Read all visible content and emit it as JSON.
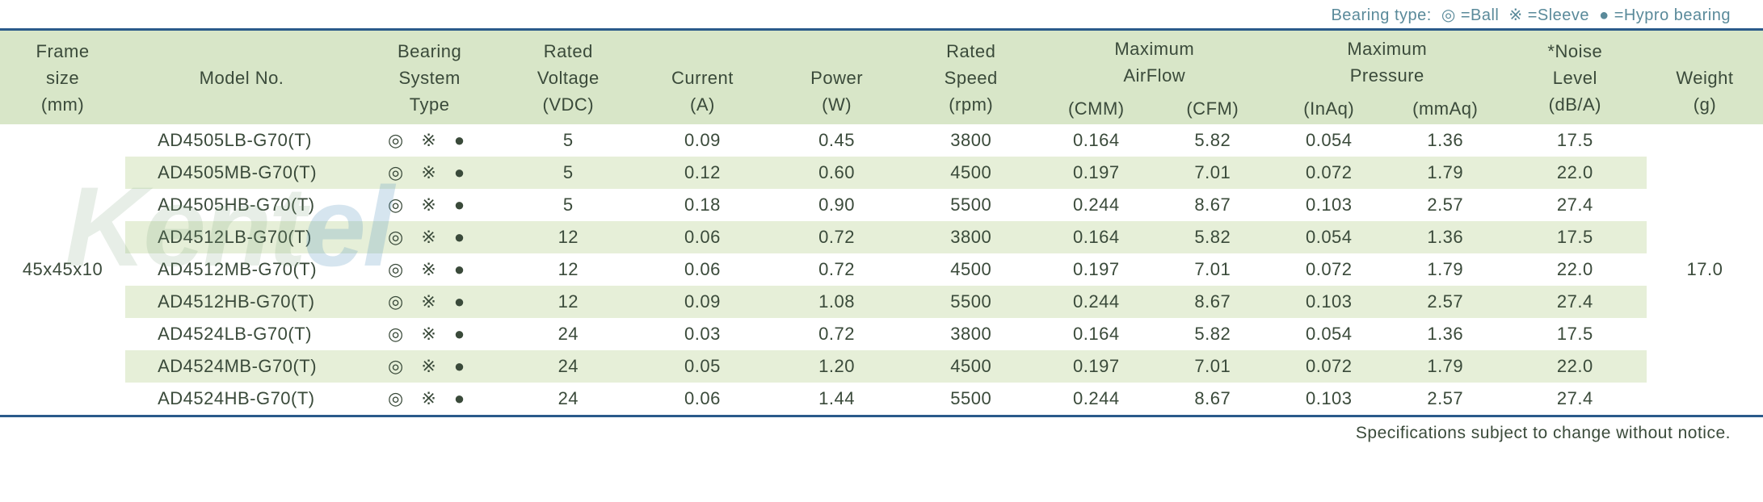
{
  "legend": {
    "label": "Bearing type:",
    "ball_sym": "◎",
    "ball_txt": "=Ball",
    "sleeve_sym": "※",
    "sleeve_txt": "=Sleeve",
    "hypro_sym": "●",
    "hypro_txt": "=Hypro bearing",
    "color": "#5a8a9a"
  },
  "headers": {
    "frame1": "Frame",
    "frame2": "size",
    "frame3": "(mm)",
    "model": "Model No.",
    "bearing1": "Bearing",
    "bearing2": "System",
    "bearing3": "Type",
    "volt1": "Rated",
    "volt2": "Voltage",
    "volt3": "(VDC)",
    "curr1": "Current",
    "curr2": "(A)",
    "power1": "Power",
    "power2": "(W)",
    "speed1": "Rated",
    "speed2": "Speed",
    "speed3": "(rpm)",
    "airflow1": "Maximum",
    "airflow2": "AirFlow",
    "cmm": "(CMM)",
    "cfm": "(CFM)",
    "press1": "Maximum",
    "press2": "Pressure",
    "inaq": "(InAq)",
    "mmaq": "(mmAq)",
    "noise1": "*Noise",
    "noise2": "Level",
    "noise3": "(dB/A)",
    "weight1": "Weight",
    "weight2": "(g)"
  },
  "frame_size": "45x45x10",
  "weight": "17.0",
  "bearing_icons": "◎ ※   ●",
  "rows": [
    {
      "model": "AD4505LB-G70(T)",
      "volt": "5",
      "curr": "0.09",
      "power": "0.45",
      "speed": "3800",
      "cmm": "0.164",
      "cfm": "5.82",
      "inaq": "0.054",
      "mmaq": "1.36",
      "noise": "17.5"
    },
    {
      "model": "AD4505MB-G70(T)",
      "volt": "5",
      "curr": "0.12",
      "power": "0.60",
      "speed": "4500",
      "cmm": "0.197",
      "cfm": "7.01",
      "inaq": "0.072",
      "mmaq": "1.79",
      "noise": "22.0"
    },
    {
      "model": "AD4505HB-G70(T)",
      "volt": "5",
      "curr": "0.18",
      "power": "0.90",
      "speed": "5500",
      "cmm": "0.244",
      "cfm": "8.67",
      "inaq": "0.103",
      "mmaq": "2.57",
      "noise": "27.4"
    },
    {
      "model": "AD4512LB-G70(T)",
      "volt": "12",
      "curr": "0.06",
      "power": "0.72",
      "speed": "3800",
      "cmm": "0.164",
      "cfm": "5.82",
      "inaq": "0.054",
      "mmaq": "1.36",
      "noise": "17.5"
    },
    {
      "model": "AD4512MB-G70(T)",
      "volt": "12",
      "curr": "0.06",
      "power": "0.72",
      "speed": "4500",
      "cmm": "0.197",
      "cfm": "7.01",
      "inaq": "0.072",
      "mmaq": "1.79",
      "noise": "22.0"
    },
    {
      "model": "AD4512HB-G70(T)",
      "volt": "12",
      "curr": "0.09",
      "power": "1.08",
      "speed": "5500",
      "cmm": "0.244",
      "cfm": "8.67",
      "inaq": "0.103",
      "mmaq": "2.57",
      "noise": "27.4"
    },
    {
      "model": "AD4524LB-G70(T)",
      "volt": "24",
      "curr": "0.03",
      "power": "0.72",
      "speed": "3800",
      "cmm": "0.164",
      "cfm": "5.82",
      "inaq": "0.054",
      "mmaq": "1.36",
      "noise": "17.5"
    },
    {
      "model": "AD4524MB-G70(T)",
      "volt": "24",
      "curr": "0.05",
      "power": "1.20",
      "speed": "4500",
      "cmm": "0.197",
      "cfm": "7.01",
      "inaq": "0.072",
      "mmaq": "1.79",
      "noise": "22.0"
    },
    {
      "model": "AD4524HB-G70(T)",
      "volt": "24",
      "curr": "0.06",
      "power": "1.44",
      "speed": "5500",
      "cmm": "0.244",
      "cfm": "8.67",
      "inaq": "0.103",
      "mmaq": "2.57",
      "noise": "27.4"
    }
  ],
  "footnote": "Specifications subject to change without notice.",
  "styling": {
    "header_bg": "#d8e6c8",
    "alt_row_bg": "#e6efd8",
    "plain_row_bg": "#ffffff",
    "rule_color": "#2a5a8a",
    "text_color": "#3a4a3a",
    "font_size_body": 22,
    "font_size_legend": 20
  }
}
